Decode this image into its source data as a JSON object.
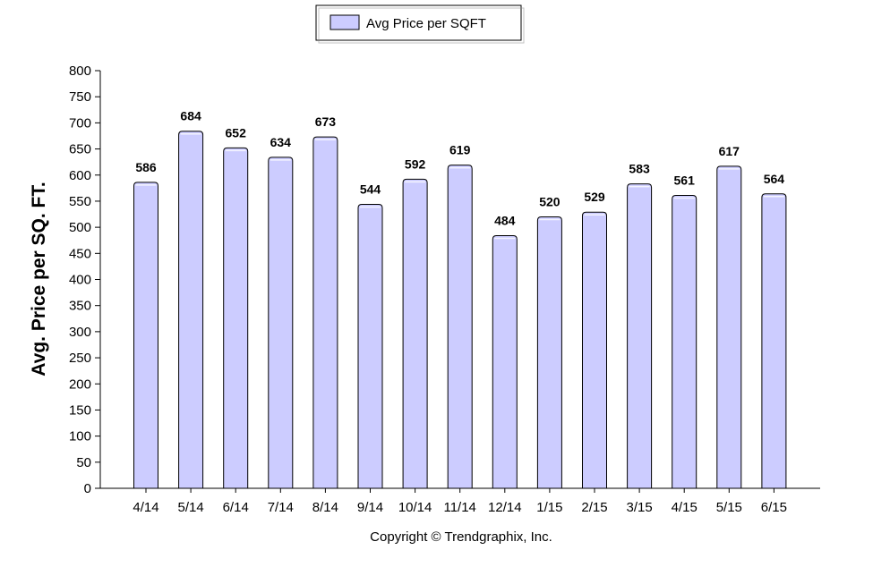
{
  "chart_data": {
    "type": "bar",
    "categories": [
      "4/14",
      "5/14",
      "6/14",
      "7/14",
      "8/14",
      "9/14",
      "10/14",
      "11/14",
      "12/14",
      "1/15",
      "2/15",
      "3/15",
      "4/15",
      "5/15",
      "6/15"
    ],
    "series": [
      {
        "name": "Avg Price per SQFT",
        "values": [
          586,
          684,
          652,
          634,
          673,
          544,
          592,
          619,
          484,
          520,
          529,
          583,
          561,
          617,
          564
        ]
      }
    ],
    "ylabel": "Avg. Price per SQ. FT.",
    "xlabel": "",
    "ylim": [
      0,
      800
    ],
    "ytick_step": 50,
    "legend_position": "top-center",
    "grid": false,
    "colors": {
      "bar_fill": "#ccccff",
      "bar_stroke": "#000000"
    }
  },
  "footer": {
    "copyright": "Copyright © Trendgraphix, Inc."
  }
}
